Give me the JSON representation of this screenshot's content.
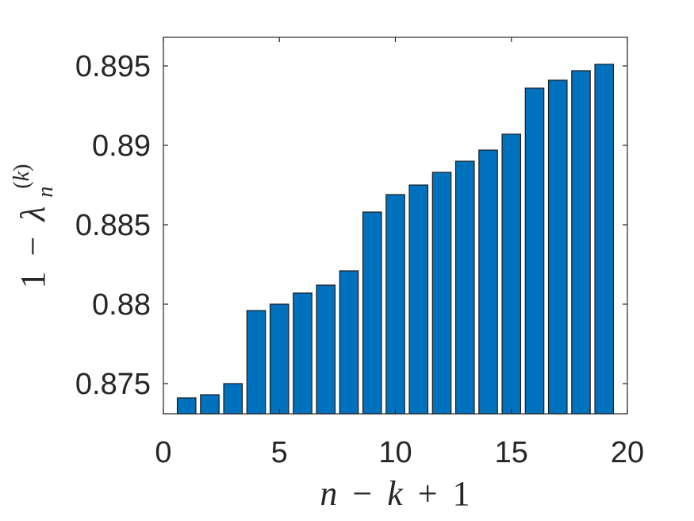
{
  "chart_data": {
    "type": "bar",
    "x": [
      1,
      2,
      3,
      4,
      5,
      6,
      7,
      8,
      9,
      10,
      11,
      12,
      13,
      14,
      15,
      16,
      17,
      18,
      19
    ],
    "values": [
      0.8741,
      0.8743,
      0.875,
      0.8796,
      0.88,
      0.8807,
      0.8812,
      0.8821,
      0.8858,
      0.8869,
      0.8875,
      0.8883,
      0.889,
      0.8897,
      0.8907,
      0.8936,
      0.8941,
      0.8947,
      0.8951
    ],
    "xlim": [
      0,
      20
    ],
    "ylim": [
      0.8731,
      0.8968
    ],
    "x_ticks": [
      0,
      5,
      10,
      15,
      20
    ],
    "x_tick_labels": [
      "0",
      "5",
      "10",
      "15",
      "20"
    ],
    "y_ticks": [
      0.875,
      0.88,
      0.885,
      0.89,
      0.895
    ],
    "y_tick_labels": [
      "0.875",
      "0.88",
      "0.885",
      "0.89",
      "0.895"
    ],
    "xlabel": "n − k + 1",
    "ylabel": "1 − λn(k)",
    "grid": false,
    "bar_color": "#0072bd"
  }
}
